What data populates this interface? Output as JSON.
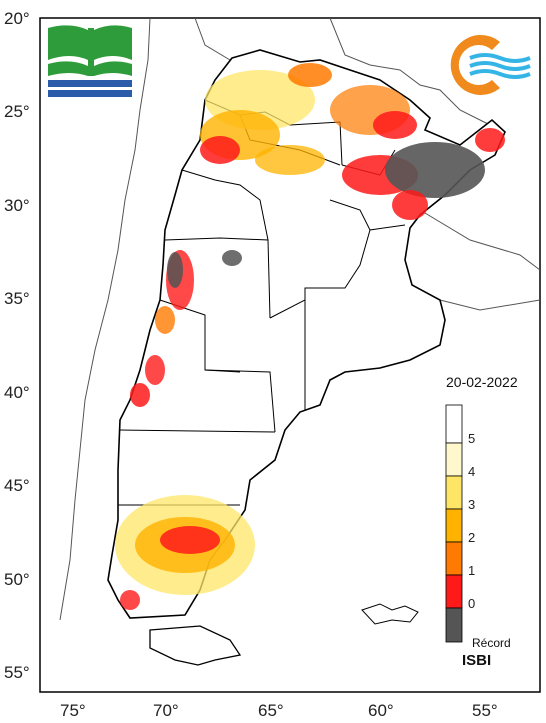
{
  "map": {
    "date": "20-02-2022",
    "index_name": "ISBI",
    "lat_ticks": [
      "20°",
      "25°",
      "30°",
      "35°",
      "40°",
      "45°",
      "50°",
      "55°"
    ],
    "lon_ticks": [
      "75°",
      "70°",
      "65°",
      "60°",
      "55°"
    ],
    "legend": {
      "labels": [
        "5",
        "4",
        "3",
        "2",
        "1",
        "0",
        "Récord"
      ],
      "colors": [
        "#ffffff",
        "#fff8cc",
        "#ffe566",
        "#ffb300",
        "#ff7a00",
        "#ff1a1a",
        "#555555"
      ]
    },
    "logos": [
      "institution-logo-green-blue",
      "institution-logo-orange-wave"
    ]
  }
}
